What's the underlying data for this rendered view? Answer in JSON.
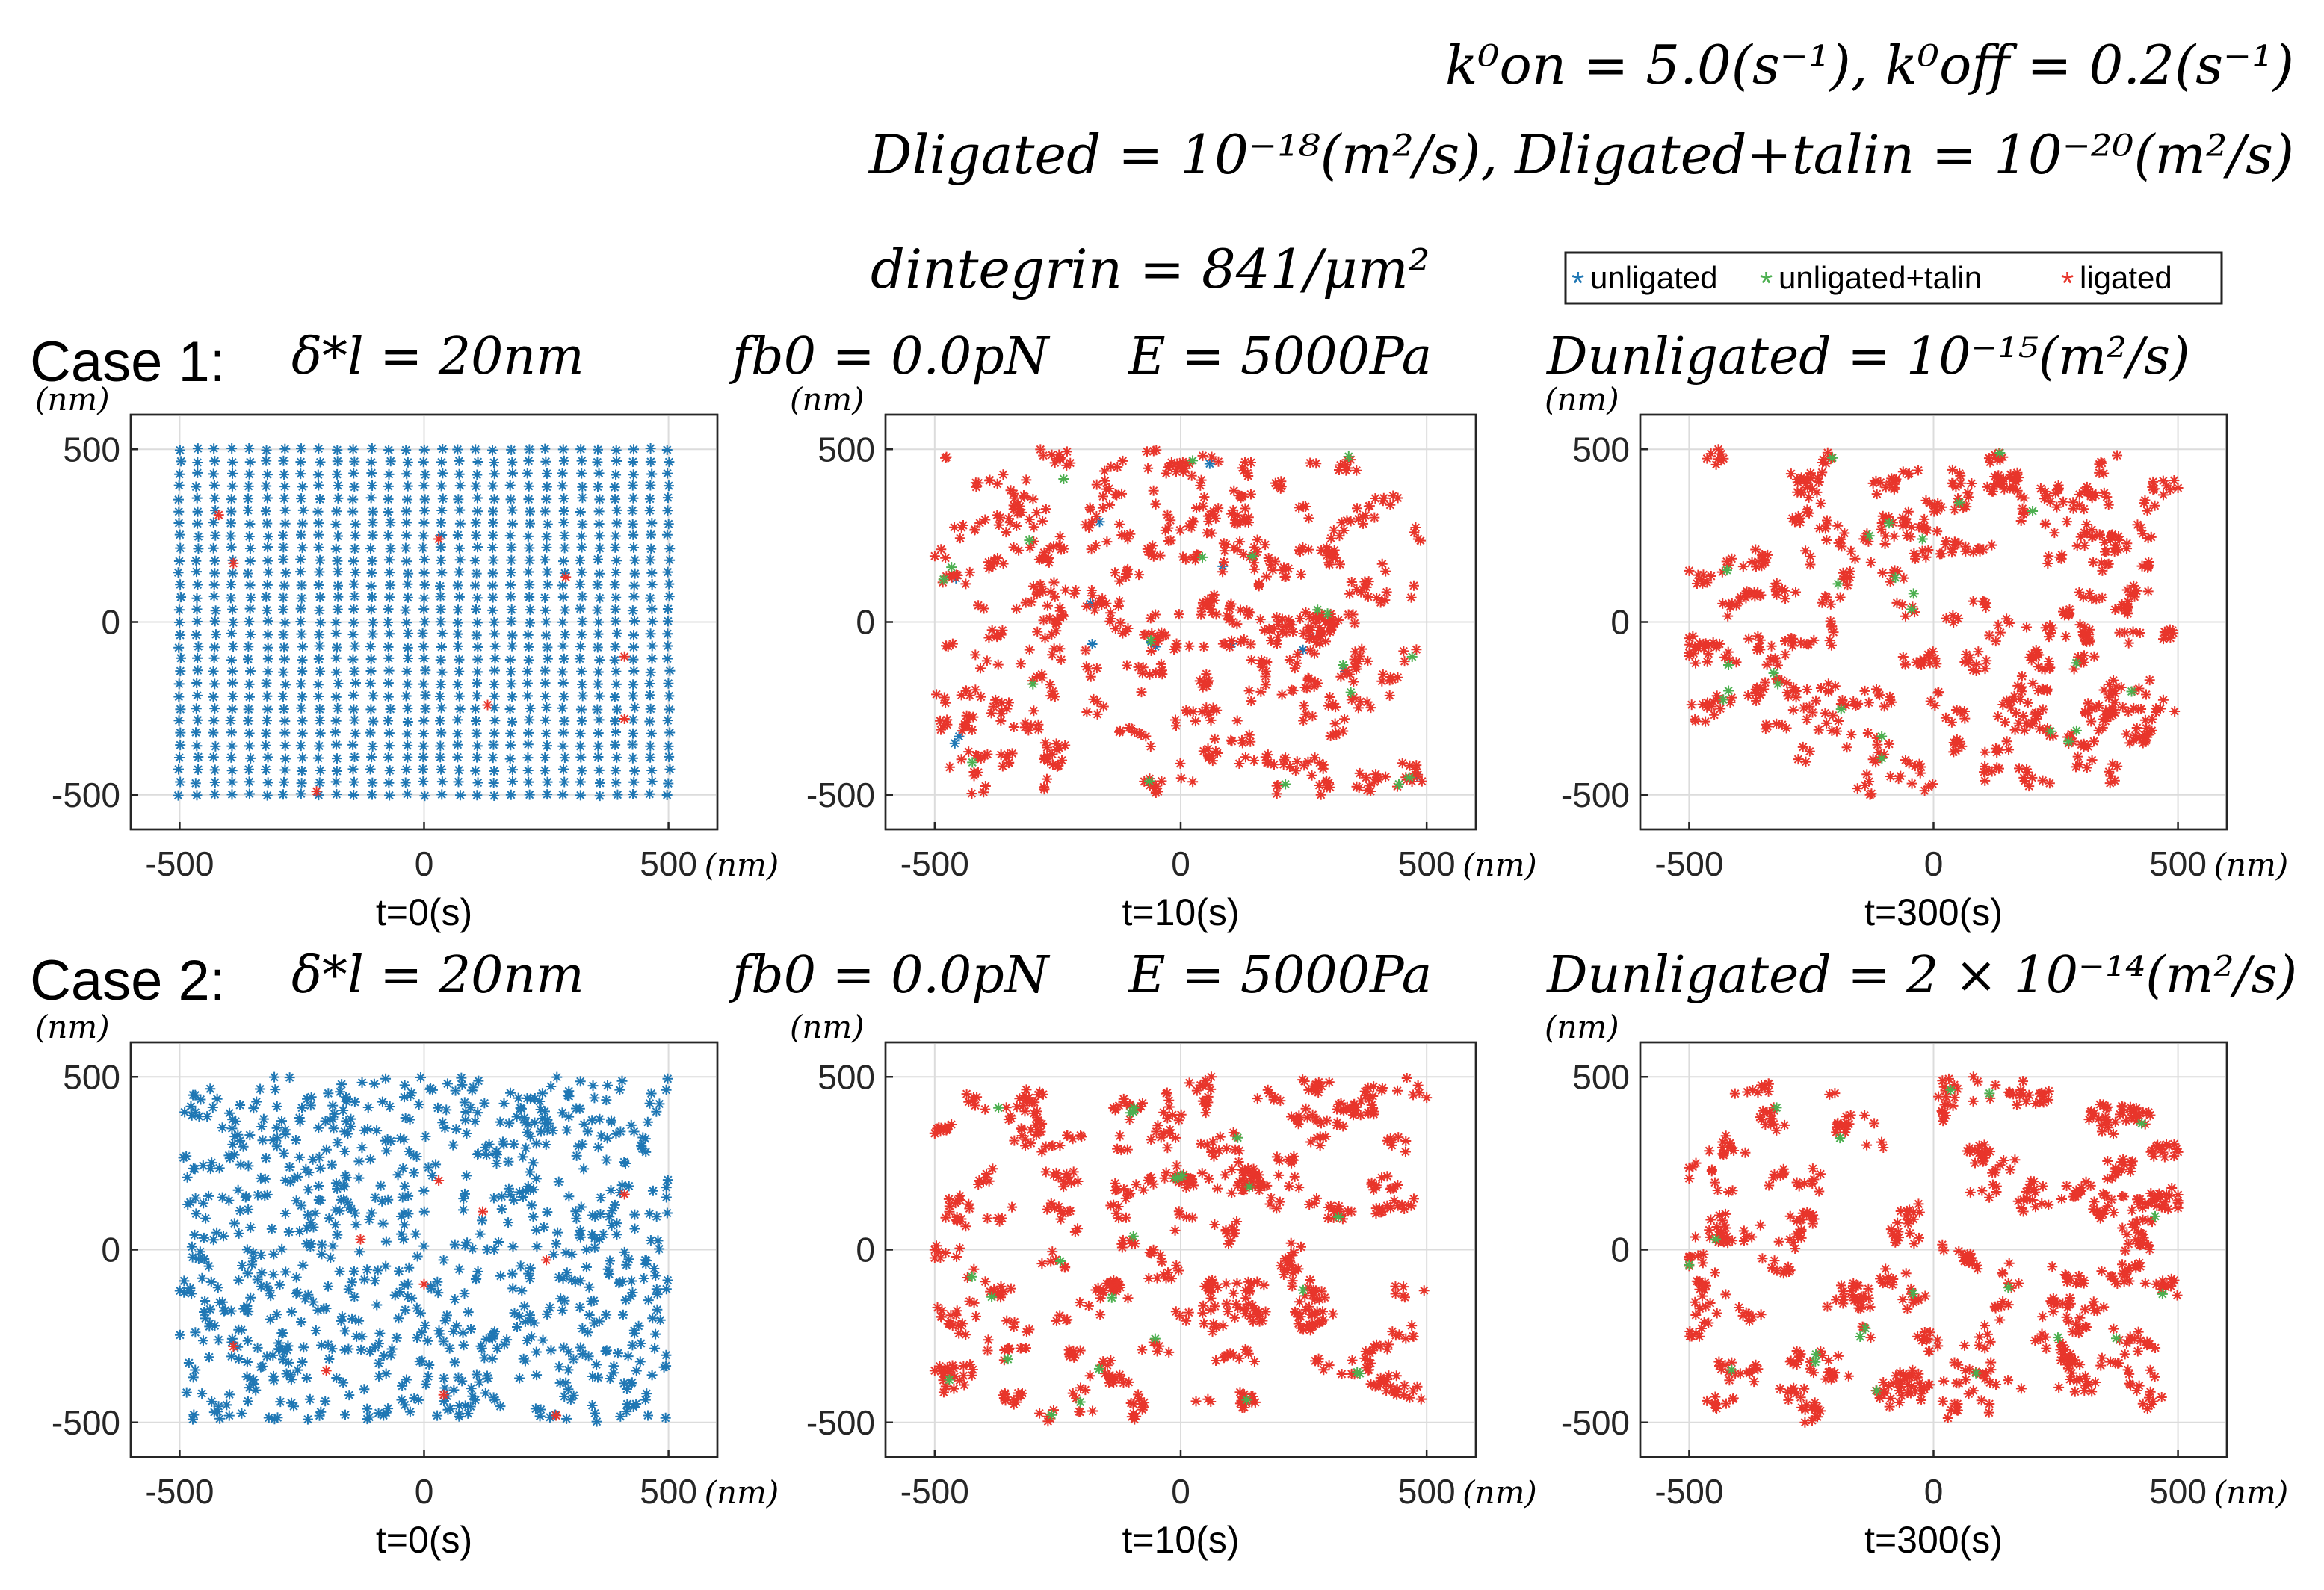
{
  "header": {
    "rates": "k⁰on = 5.0(s⁻¹), k⁰off = 0.2(s⁻¹)",
    "diffusion_ligated": "Dligated = 10⁻¹⁸(m²/s), Dligated+talin = 10⁻²⁰(m²/s)",
    "density": "dintegrin = 841/μm²"
  },
  "legend": {
    "items": [
      {
        "label": "unligated",
        "color": "#1f77b4"
      },
      {
        "label": "unligated+talin",
        "color": "#4caf50"
      },
      {
        "label": "ligated",
        "color": "#e8352b"
      }
    ]
  },
  "cases": [
    {
      "title": "Case 1:",
      "delta": "δ*l = 20nm",
      "force": "fb0 = 0.0pN",
      "modulus": "E = 5000Pa",
      "d_unligated": "Dunligated = 10⁻¹⁵(m²/s)"
    },
    {
      "title": "Case 2:",
      "delta": "δ*l = 20nm",
      "force": "fb0 = 0.0pN",
      "modulus": "E = 5000Pa",
      "d_unligated": "Dunligated = 2 × 10⁻¹⁴(m²/s)"
    }
  ],
  "axis": {
    "unit": "(nm)",
    "xticks": [
      "-500",
      "0",
      "500"
    ],
    "yticks": [
      "500",
      "0",
      "-500"
    ]
  },
  "chart_data": [
    {
      "type": "scatter",
      "case": 1,
      "title": "t=0(s)",
      "xlim": [
        -600,
        600
      ],
      "ylim": [
        -600,
        600
      ],
      "grid": true,
      "layout": "regular-lattice",
      "counts": {
        "unligated": 833,
        "unligated+talin": 0,
        "ligated": 8
      },
      "ligated_points": [
        [
          -420,
          310
        ],
        [
          -390,
          170
        ],
        [
          30,
          240
        ],
        [
          290,
          130
        ],
        [
          410,
          -100
        ],
        [
          130,
          -240
        ],
        [
          410,
          -280
        ],
        [
          -220,
          -490
        ]
      ]
    },
    {
      "type": "scatter",
      "case": 1,
      "title": "t=10(s)",
      "xlim": [
        -600,
        600
      ],
      "ylim": [
        -600,
        600
      ],
      "grid": true,
      "layout": "scattered-small-clusters",
      "counts": {
        "unligated": 15,
        "unligated+talin": 20,
        "ligated": 806
      }
    },
    {
      "type": "scatter",
      "case": 1,
      "title": "t=300(s)",
      "xlim": [
        -600,
        600
      ],
      "ylim": [
        -600,
        600
      ],
      "grid": true,
      "layout": "clusters",
      "counts": {
        "unligated": 0,
        "unligated+talin": 25,
        "ligated": 816
      }
    },
    {
      "type": "scatter",
      "case": 2,
      "title": "t=0(s)",
      "xlim": [
        -600,
        600
      ],
      "ylim": [
        -600,
        600
      ],
      "grid": true,
      "layout": "random",
      "counts": {
        "unligated": 831,
        "unligated+talin": 0,
        "ligated": 10
      },
      "ligated_points": [
        [
          30,
          200
        ],
        [
          120,
          110
        ],
        [
          -130,
          30
        ],
        [
          0,
          -100
        ],
        [
          -390,
          -280
        ],
        [
          40,
          -420
        ],
        [
          270,
          -480
        ],
        [
          410,
          160
        ],
        [
          250,
          -30
        ],
        [
          -200,
          -350
        ]
      ]
    },
    {
      "type": "scatter",
      "case": 2,
      "title": "t=10(s)",
      "xlim": [
        -600,
        600
      ],
      "ylim": [
        -600,
        600
      ],
      "grid": true,
      "layout": "clusters",
      "counts": {
        "unligated": 0,
        "unligated+talin": 25,
        "ligated": 816
      }
    },
    {
      "type": "scatter",
      "case": 2,
      "title": "t=300(s)",
      "xlim": [
        -600,
        600
      ],
      "ylim": [
        -600,
        600
      ],
      "grid": true,
      "layout": "large-clusters",
      "counts": {
        "unligated": 0,
        "unligated+talin": 20,
        "ligated": 821
      }
    }
  ]
}
